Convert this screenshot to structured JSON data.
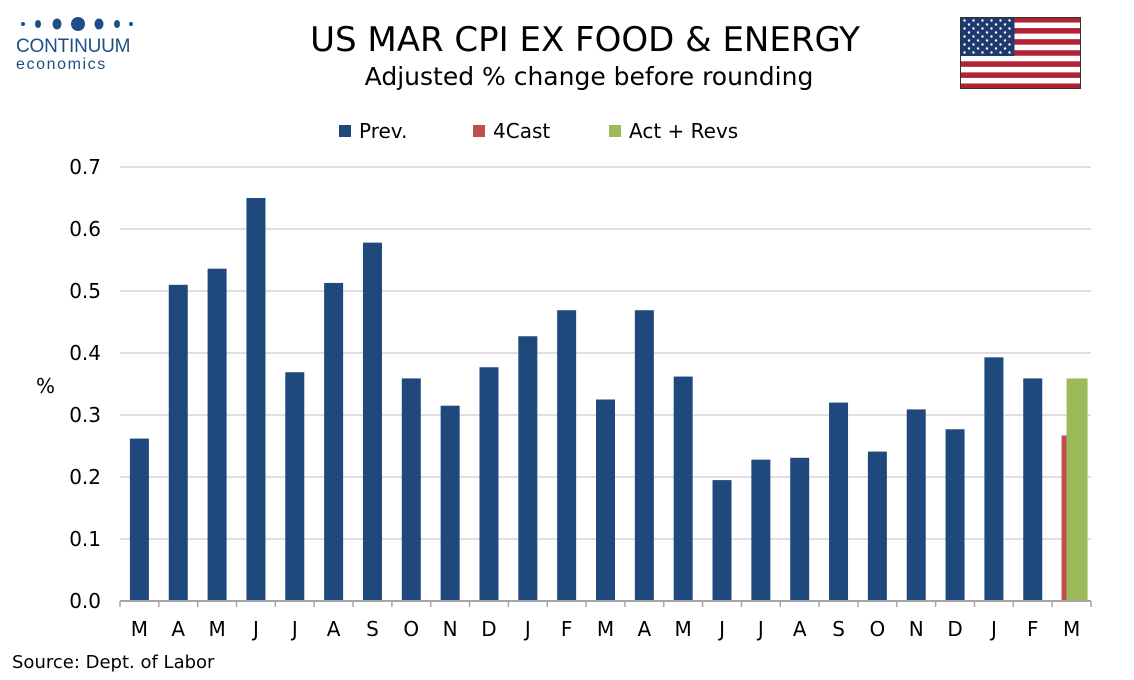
{
  "logo": {
    "name": "CONTINUUM",
    "sub": "economics",
    "color": "#1f4e86"
  },
  "flag": {
    "icon": "us-flag-icon"
  },
  "source": "Source: Dept. of Labor",
  "chart_data": {
    "type": "bar",
    "title": "US MAR CPI EX FOOD & ENERGY",
    "subtitle": "Adjusted % change before rounding",
    "ylabel": "%",
    "xlabel": "",
    "ylim": [
      0,
      0.7
    ],
    "yticks": [
      "0.0",
      "0.1",
      "0.2",
      "0.3",
      "0.4",
      "0.5",
      "0.6",
      "0.7"
    ],
    "grid": true,
    "legend_position": "top",
    "categories": [
      "M",
      "A",
      "M",
      "J",
      "J",
      "A",
      "S",
      "O",
      "N",
      "D",
      "J",
      "F",
      "M",
      "A",
      "M",
      "J",
      "J",
      "A",
      "S",
      "O",
      "N",
      "D",
      "J",
      "F",
      "M"
    ],
    "series": [
      {
        "name": "Prev.",
        "color": "#1f497d",
        "values": [
          0.262,
          0.51,
          0.536,
          0.65,
          0.369,
          0.513,
          0.578,
          0.359,
          0.315,
          0.377,
          0.427,
          0.469,
          0.325,
          0.469,
          0.362,
          0.195,
          0.228,
          0.231,
          0.32,
          0.241,
          0.309,
          0.277,
          0.393,
          0.359,
          null
        ]
      },
      {
        "name": "4Cast",
        "color": "#c0504d",
        "values": [
          null,
          null,
          null,
          null,
          null,
          null,
          null,
          null,
          null,
          null,
          null,
          null,
          null,
          null,
          null,
          null,
          null,
          null,
          null,
          null,
          null,
          null,
          null,
          null,
          0.267
        ]
      },
      {
        "name": "Act + Revs",
        "color": "#9bbb59",
        "values": [
          null,
          null,
          null,
          null,
          null,
          null,
          null,
          null,
          null,
          null,
          null,
          null,
          null,
          null,
          null,
          null,
          null,
          null,
          null,
          null,
          null,
          null,
          null,
          null,
          0.359
        ]
      }
    ]
  }
}
